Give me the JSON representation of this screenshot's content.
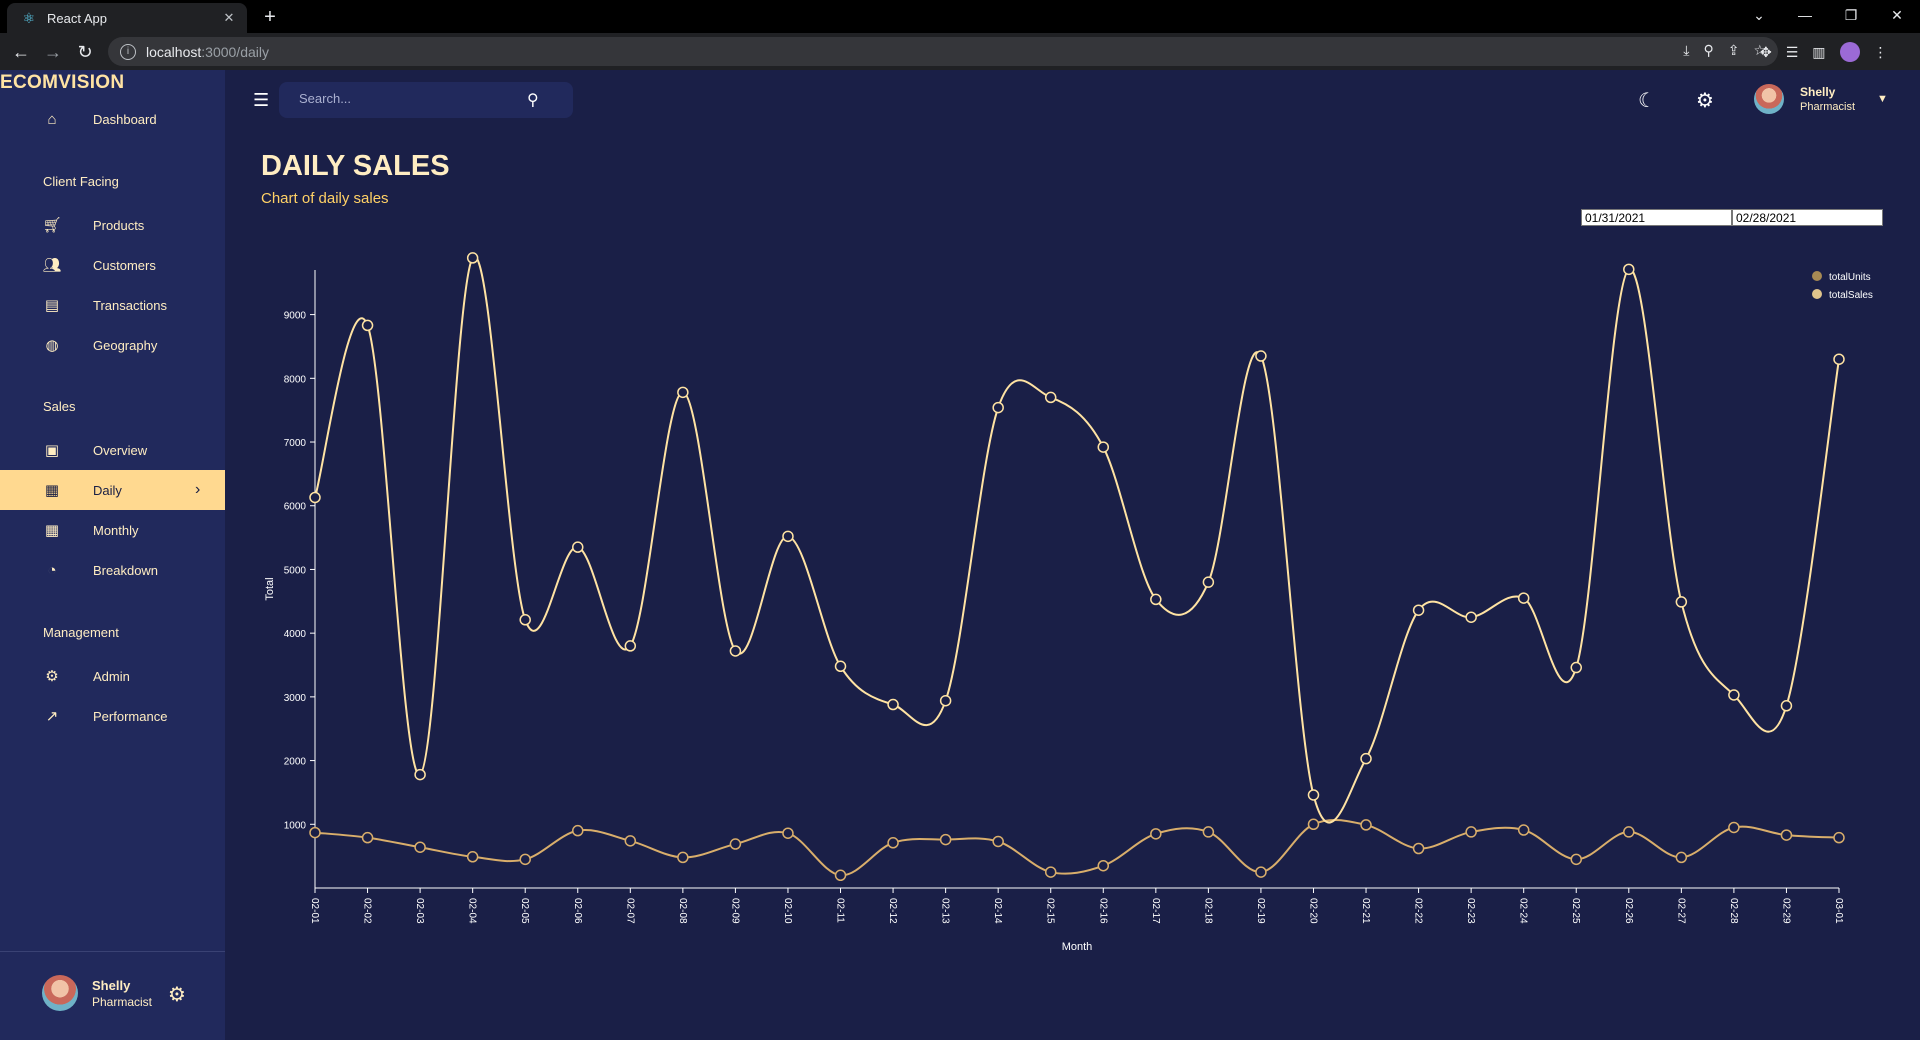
{
  "browser": {
    "tab_title": "React App",
    "url_host": "localhost",
    "url_path": ":3000/daily"
  },
  "app": {
    "brand": "ECOMVISION",
    "search_placeholder": "Search...",
    "user": {
      "name": "Shelly",
      "role": "Pharmacist"
    }
  },
  "sidebar": {
    "items": [
      {
        "label": "Dashboard",
        "icon": "home-icon"
      },
      {
        "section": "Client Facing"
      },
      {
        "label": "Products",
        "icon": "cart-icon"
      },
      {
        "label": "Customers",
        "icon": "groups-icon"
      },
      {
        "label": "Transactions",
        "icon": "receipt-icon"
      },
      {
        "label": "Geography",
        "icon": "globe-icon"
      },
      {
        "section": "Sales"
      },
      {
        "label": "Overview",
        "icon": "point-of-sale-icon"
      },
      {
        "label": "Daily",
        "icon": "calendar-today-icon",
        "active": true
      },
      {
        "label": "Monthly",
        "icon": "calendar-month-icon"
      },
      {
        "label": "Breakdown",
        "icon": "pie-chart-icon"
      },
      {
        "section": "Management"
      },
      {
        "label": "Admin",
        "icon": "admin-icon"
      },
      {
        "label": "Performance",
        "icon": "trending-up-icon"
      }
    ]
  },
  "header": {
    "title": "DAILY SALES",
    "subtitle": "Chart of daily sales"
  },
  "date_range": {
    "start": "01/31/2021",
    "end": "02/28/2021"
  },
  "colors": {
    "sales_line": "#ffe3a3",
    "units_line": "#d9ae6b",
    "legend_units": "#a88a54",
    "legend_sales": "#e0c48c",
    "axis_text": "#ffffff"
  },
  "chart_data": {
    "type": "line",
    "xlabel": "Month",
    "ylabel": "Total",
    "ylim": [
      0,
      9700
    ],
    "yticks": [
      1000,
      2000,
      3000,
      4000,
      5000,
      6000,
      7000,
      8000,
      9000
    ],
    "x": [
      "02-01",
      "02-02",
      "02-03",
      "02-04",
      "02-05",
      "02-06",
      "02-07",
      "02-08",
      "02-09",
      "02-10",
      "02-11",
      "02-12",
      "02-13",
      "02-14",
      "02-15",
      "02-16",
      "02-17",
      "02-18",
      "02-19",
      "02-20",
      "02-21",
      "02-22",
      "02-23",
      "02-24",
      "02-25",
      "02-26",
      "02-27",
      "02-28",
      "02-29",
      "03-01"
    ],
    "legend_placement": "top-right",
    "series": [
      {
        "name": "totalUnits",
        "values": [
          870,
          790,
          640,
          490,
          450,
          900,
          740,
          480,
          690,
          860,
          200,
          710,
          760,
          730,
          250,
          350,
          850,
          880,
          250,
          1000,
          990,
          620,
          880,
          910,
          450,
          880,
          480,
          950,
          830,
          790
        ]
      },
      {
        "name": "totalSales",
        "values": [
          6130,
          8830,
          1780,
          9890,
          4210,
          5350,
          3800,
          7780,
          3720,
          5520,
          3480,
          2880,
          2940,
          7540,
          7700,
          6920,
          4530,
          4800,
          8350,
          1460,
          2030,
          4360,
          4250,
          4550,
          3460,
          9710,
          4490,
          3030,
          2860,
          8300
        ]
      }
    ]
  }
}
